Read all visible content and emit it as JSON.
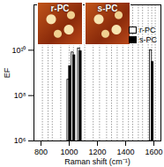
{
  "chart_data": {
    "type": "bar",
    "x_label": "Raman shift (cm⁻¹)",
    "y_label": "EF",
    "insets": [
      "r-PC",
      "s-PC"
    ],
    "x": [
      1000,
      1030,
      1075,
      1585
    ],
    "series": [
      {
        "name": "r-PC",
        "color": "#ffffff",
        "values": [
          500000000,
          8000000000,
          12000000000,
          10000000000
        ]
      },
      {
        "name": "s-PC",
        "color": "#000000",
        "values": [
          2000000000,
          6000000000,
          9000000000,
          3000000000
        ]
      }
    ],
    "peak_lines": [
      810,
      850,
      880,
      940,
      1000,
      1030,
      1075,
      1110,
      1170,
      1215,
      1265,
      1300,
      1340,
      1380,
      1420,
      1450,
      1490,
      1520,
      1560,
      1585,
      1610
    ],
    "xlim": [
      750,
      1650
    ],
    "xticks": [
      800,
      1000,
      1200,
      1400,
      1600
    ],
    "ylim": [
      1000000,
      1000000000000
    ],
    "yticks": [
      {
        "value": 1000000,
        "label": "10⁶"
      },
      {
        "value": 100000000,
        "label": "10⁸"
      },
      {
        "value": 10000000000,
        "label": "10¹⁰"
      }
    ],
    "log": "y",
    "grid": true,
    "legend": "top-right"
  }
}
